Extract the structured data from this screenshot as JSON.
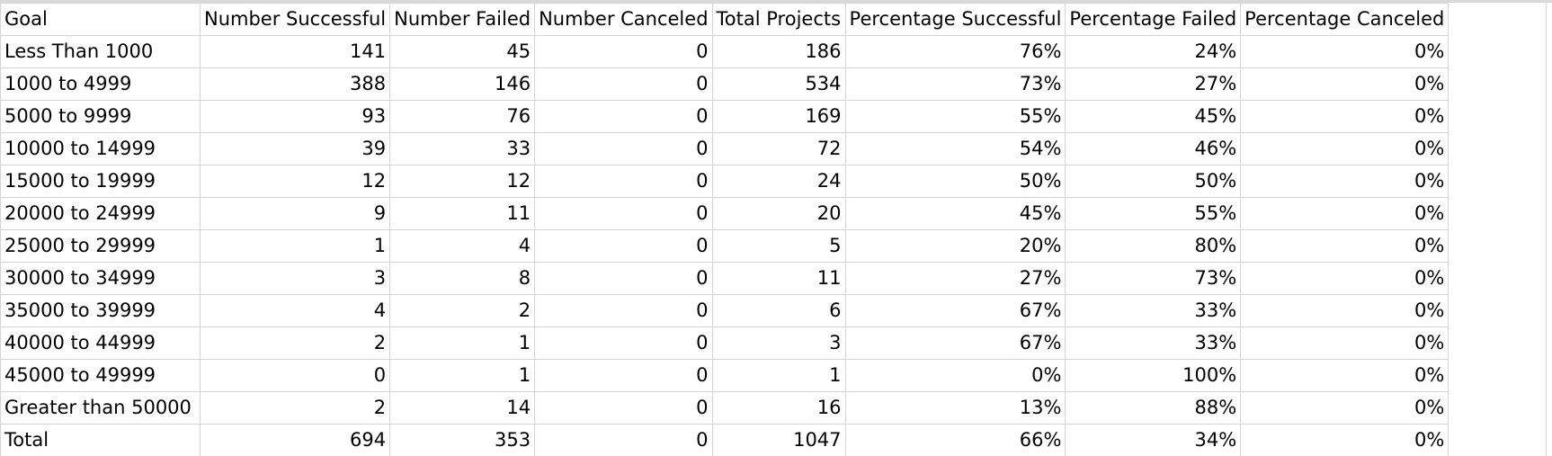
{
  "table": {
    "headers": [
      "Goal",
      "Number Successful",
      "Number Failed",
      "Number Canceled",
      "Total Projects",
      "Percentage Successful",
      "Percentage Failed",
      "Percentage Canceled"
    ],
    "rows": [
      [
        "Less Than 1000",
        "141",
        "45",
        "0",
        "186",
        "76%",
        "24%",
        "0%"
      ],
      [
        "1000 to 4999",
        "388",
        "146",
        "0",
        "534",
        "73%",
        "27%",
        "0%"
      ],
      [
        "5000 to 9999",
        "93",
        "76",
        "0",
        "169",
        "55%",
        "45%",
        "0%"
      ],
      [
        "10000 to 14999",
        "39",
        "33",
        "0",
        "72",
        "54%",
        "46%",
        "0%"
      ],
      [
        "15000 to 19999",
        "12",
        "12",
        "0",
        "24",
        "50%",
        "50%",
        "0%"
      ],
      [
        "20000 to 24999",
        "9",
        "11",
        "0",
        "20",
        "45%",
        "55%",
        "0%"
      ],
      [
        "25000 to 29999",
        "1",
        "4",
        "0",
        "5",
        "20%",
        "80%",
        "0%"
      ],
      [
        "30000 to 34999",
        "3",
        "8",
        "0",
        "11",
        "27%",
        "73%",
        "0%"
      ],
      [
        "35000 to 39999",
        "4",
        "2",
        "0",
        "6",
        "67%",
        "33%",
        "0%"
      ],
      [
        "40000 to 44999",
        "2",
        "1",
        "0",
        "3",
        "67%",
        "33%",
        "0%"
      ],
      [
        "45000 to 49999",
        "0",
        "1",
        "0",
        "1",
        "0%",
        "100%",
        "0%"
      ],
      [
        "Greater than 50000",
        "2",
        "14",
        "0",
        "16",
        "13%",
        "88%",
        "0%"
      ],
      [
        "Total",
        "694",
        "353",
        "0",
        "1047",
        "66%",
        "34%",
        "0%"
      ]
    ]
  }
}
